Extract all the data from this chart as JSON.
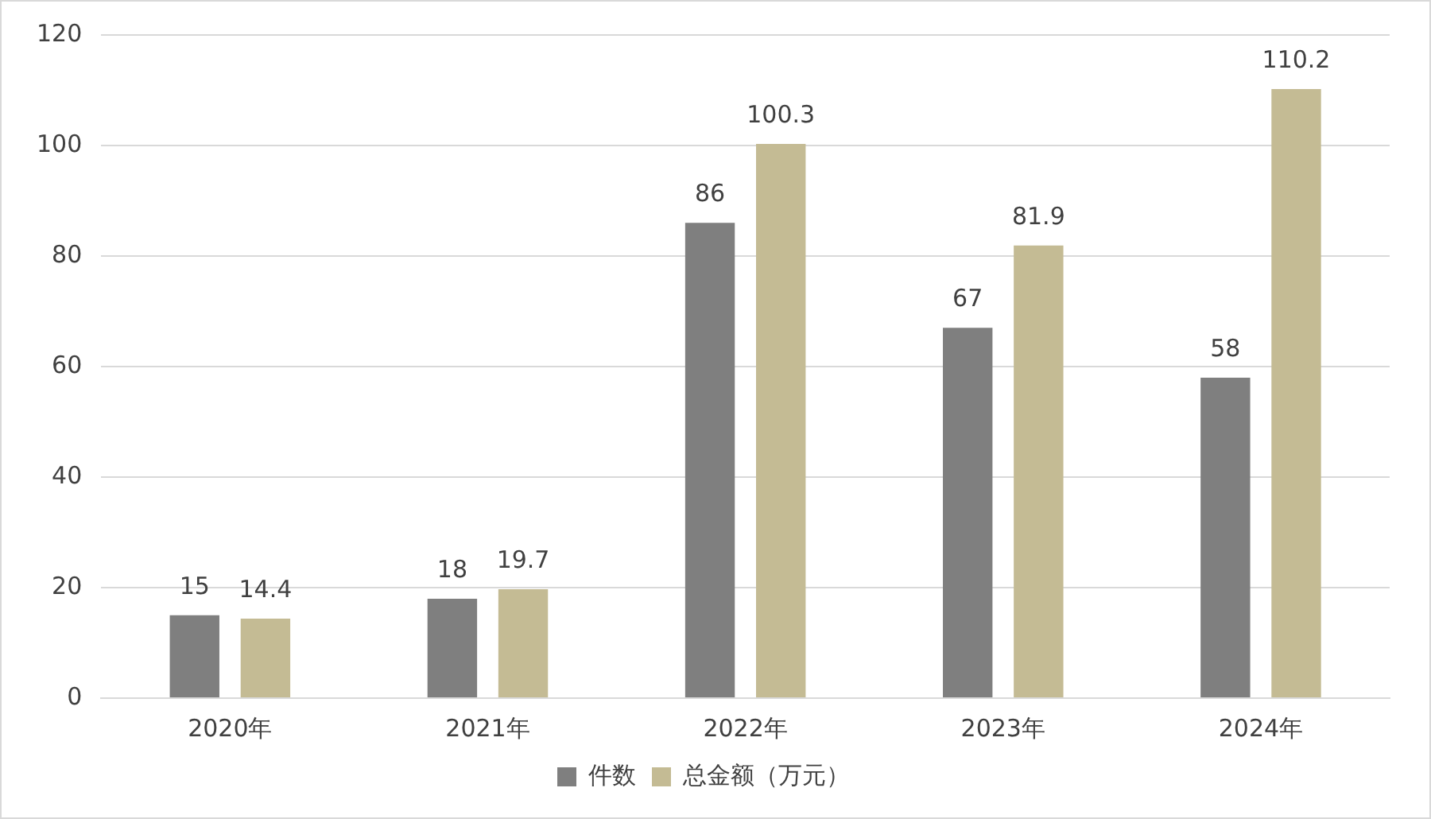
{
  "chart_data": {
    "type": "bar",
    "categories": [
      "2020年",
      "2021年",
      "2022年",
      "2023年",
      "2024年"
    ],
    "series": [
      {
        "name": "件数",
        "color": "#7f7f7f",
        "values": [
          15,
          18,
          86,
          67,
          58
        ]
      },
      {
        "name": "总金额（万元）",
        "color": "#c4bb94",
        "values": [
          14.4,
          19.7,
          100.3,
          81.9,
          110.2
        ]
      }
    ],
    "ylim": [
      0,
      120
    ],
    "yticks": [
      0,
      20,
      40,
      60,
      80,
      100,
      120
    ],
    "grid": "y",
    "legend": "bottom",
    "data_labels": true
  }
}
